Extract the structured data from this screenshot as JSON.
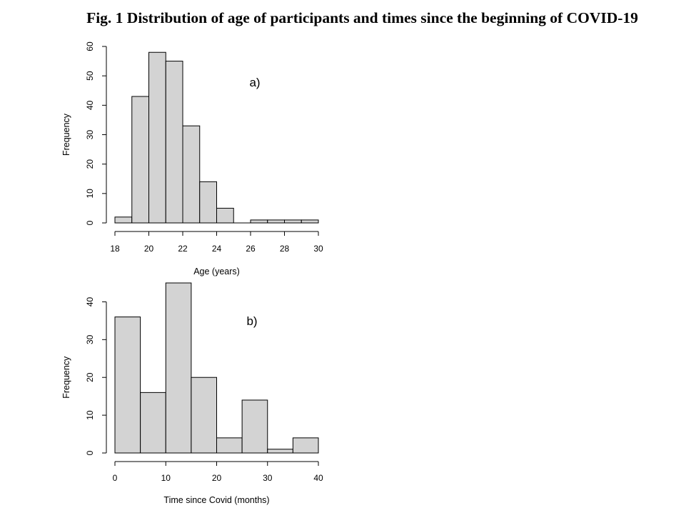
{
  "figure": {
    "title": "Fig. 1 Distribution of age of participants and times since the beginning of COVID-19"
  },
  "colors": {
    "bar_fill": "#d3d3d3",
    "bar_stroke": "#000000"
  },
  "chart_data": [
    {
      "type": "bar",
      "subtype": "histogram",
      "panel_label": "a)",
      "xlabel": "Age (years)",
      "ylabel": "Frequency",
      "bin_edges": [
        18,
        19,
        20,
        21,
        22,
        23,
        24,
        25,
        26,
        27,
        28,
        29,
        30
      ],
      "values": [
        2,
        43,
        58,
        55,
        33,
        14,
        5,
        0,
        1,
        1,
        1,
        1
      ],
      "xlim": [
        18,
        30
      ],
      "ylim": [
        0,
        60
      ],
      "xticks": [
        18,
        20,
        22,
        24,
        26,
        28,
        30
      ],
      "yticks": [
        0,
        10,
        20,
        30,
        40,
        50,
        60
      ],
      "grid": false
    },
    {
      "type": "bar",
      "subtype": "histogram",
      "panel_label": "b)",
      "xlabel": "Time since Covid (months)",
      "ylabel": "Frequency",
      "bin_edges": [
        0,
        5,
        10,
        15,
        20,
        25,
        30,
        35,
        40
      ],
      "values": [
        36,
        16,
        45,
        20,
        4,
        14,
        1,
        4
      ],
      "xlim": [
        0,
        40
      ],
      "ylim": [
        0,
        45
      ],
      "xticks": [
        0,
        10,
        20,
        30,
        40
      ],
      "yticks": [
        0,
        10,
        20,
        30,
        40
      ],
      "grid": false
    }
  ]
}
